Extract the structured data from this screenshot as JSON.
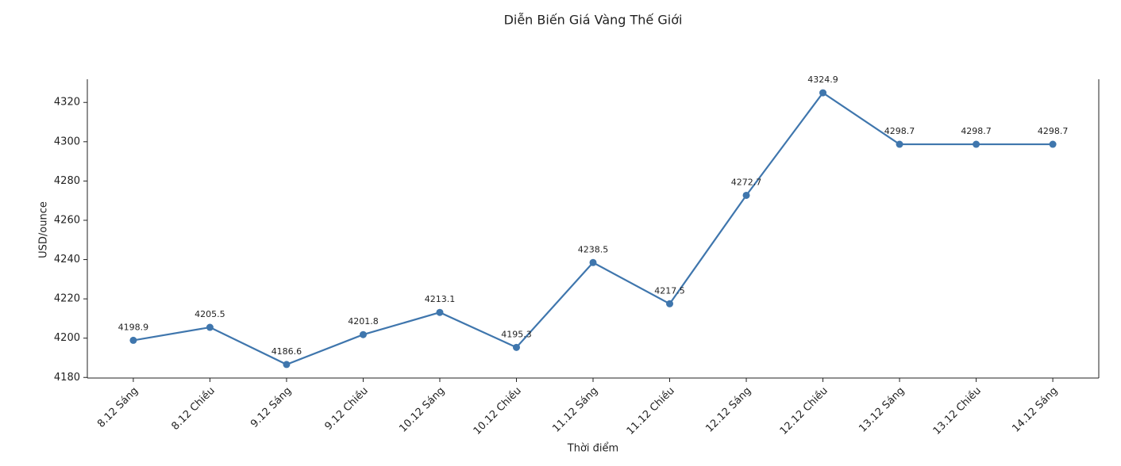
{
  "chart_data": {
    "type": "line",
    "title": "Diễn Biến Giá Vàng Thế Giới",
    "x_label": "Thời điểm",
    "y_label": "USD/ounce",
    "categories": [
      "8.12 Sáng",
      "8.12 Chiều",
      "9.12 Sáng",
      "9.12 Chiều",
      "10.12 Sáng",
      "10.12 Chiều",
      "11.12 Sáng",
      "11.12 Chiều",
      "12.12 Sáng",
      "12.12 Chiều",
      "13.12 Sáng",
      "13.12 Chiều",
      "14.12 Sáng"
    ],
    "values": [
      4198.9,
      4205.5,
      4186.6,
      4201.8,
      4213.1,
      4195.3,
      4238.5,
      4217.5,
      4272.7,
      4324.9,
      4298.7,
      4298.7,
      4298.7
    ],
    "color": "#3f76ad",
    "ylim": [
      4179.7,
      4331.8
    ],
    "yticks": [
      4180,
      4200,
      4220,
      4240,
      4260,
      4280,
      4300,
      4320
    ]
  }
}
